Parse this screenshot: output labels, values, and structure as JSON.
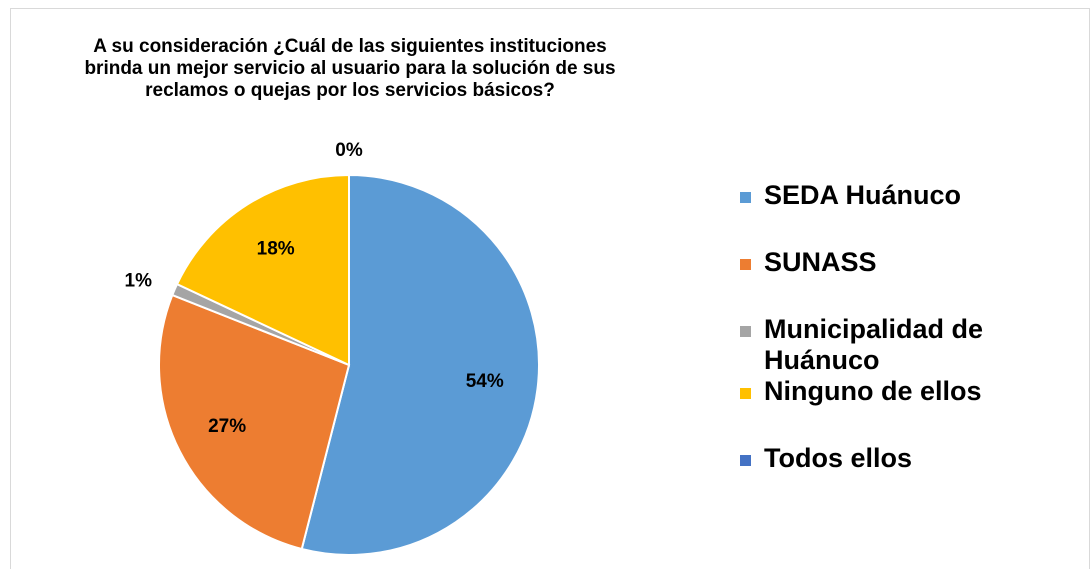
{
  "chart_data": {
    "type": "pie",
    "title": "A su consideración ¿Cuál de las siguientes instituciones brinda un mejor servicio al usuario para la solución de sus reclamos o quejas por los servicios básicos?",
    "categories": [
      "SEDA Huánuco",
      "SUNASS",
      "Municipalidad de Huánuco",
      "Ninguno de ellos",
      "Todos ellos"
    ],
    "values": [
      54,
      27,
      1,
      18,
      0
    ],
    "value_labels": [
      "54%",
      "27%",
      "1%",
      "18%",
      "0%"
    ],
    "colors": [
      "#5b9bd5",
      "#ed7d31",
      "#a5a5a5",
      "#ffc000",
      "#4472c4"
    ],
    "legend": "right"
  }
}
